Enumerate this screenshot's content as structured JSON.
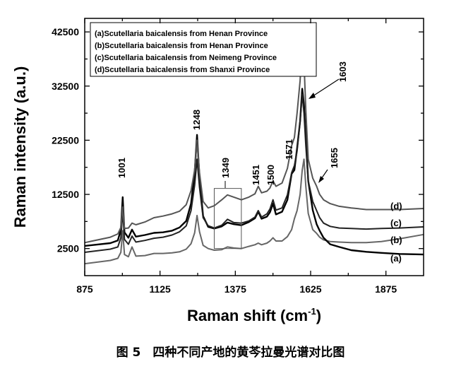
{
  "chart_data": {
    "type": "line",
    "xlabel_main": "Raman shift (cm",
    "xlabel_sup": "-1",
    "xlabel_close": ")",
    "ylabel": "Raman intensity (a.u.)",
    "xlim": [
      875,
      2000
    ],
    "ylim": [
      -2500,
      45000
    ],
    "x_ticks": [
      875,
      1125,
      1375,
      1625,
      1875
    ],
    "y_ticks": [
      2500,
      12500,
      22500,
      32500,
      42500
    ],
    "legend": [
      "(a)Scutellaria baicalensis from Henan Province",
      "(b)Scutellaria baicalensis from Henan Province",
      "(c)Scutellaria baicalensis from Neimeng Province",
      "(d)Scutellaria baicalensis from Shanxi Province"
    ],
    "peak_labels": [
      "1001",
      "1248",
      "1349",
      "1451",
      "1500",
      "1571",
      "1603",
      "1655"
    ],
    "series": [
      {
        "label": "(a)",
        "color": "#666666",
        "x": [
          875,
          960,
          985,
          995,
          1001,
          1007,
          1020,
          1032,
          1045,
          1075,
          1105,
          1135,
          1165,
          1190,
          1212,
          1228,
          1240,
          1248,
          1256,
          1268,
          1285,
          1305,
          1330,
          1349,
          1370,
          1395,
          1420,
          1440,
          1451,
          1462,
          1480,
          1490,
          1500,
          1510,
          1530,
          1548,
          1562,
          1571,
          1580,
          1590,
          1597,
          1603,
          1609,
          1617,
          1632,
          1645,
          1655,
          1668,
          1690,
          1720,
          1760,
          1810,
          1860,
          1920,
          2000
        ],
        "y": [
          -300,
          300,
          700,
          1800,
          5800,
          1400,
          1000,
          2800,
          1100,
          1200,
          1600,
          1600,
          1700,
          1900,
          2400,
          3400,
          5400,
          8600,
          5600,
          3100,
          2500,
          2200,
          2300,
          2800,
          2600,
          2500,
          2900,
          3200,
          3500,
          3200,
          3500,
          3900,
          4500,
          3900,
          3900,
          4700,
          6000,
          8000,
          9500,
          12500,
          17000,
          19000,
          14000,
          9000,
          6000,
          5300,
          4600,
          4100,
          3800,
          3700,
          3600,
          3600,
          3800,
          4300,
          5100
        ]
      },
      {
        "label": "(b)",
        "color": "#000000",
        "x": [
          875,
          960,
          985,
          995,
          1001,
          1007,
          1020,
          1032,
          1045,
          1075,
          1105,
          1135,
          1165,
          1190,
          1212,
          1228,
          1240,
          1248,
          1256,
          1268,
          1285,
          1305,
          1330,
          1349,
          1370,
          1395,
          1420,
          1440,
          1451,
          1462,
          1480,
          1490,
          1500,
          1510,
          1530,
          1548,
          1562,
          1571,
          1580,
          1590,
          1597,
          1603,
          1609,
          1617,
          1632,
          1645,
          1655,
          1668,
          1690,
          1720,
          1760,
          1810,
          1860,
          1920,
          2000
        ],
        "y": [
          3000,
          3500,
          4000,
          6000,
          12000,
          5500,
          4500,
          6000,
          4700,
          5000,
          5400,
          5500,
          5800,
          6400,
          7600,
          10800,
          16500,
          23500,
          15500,
          8500,
          6500,
          6200,
          6600,
          7300,
          7000,
          6800,
          7400,
          8100,
          9300,
          8000,
          8400,
          9200,
          10800,
          8800,
          9300,
          11500,
          16300,
          17000,
          21000,
          26000,
          32000,
          29000,
          23000,
          15000,
          9600,
          7000,
          5800,
          4500,
          3300,
          2800,
          2200,
          1900,
          1700,
          1500,
          1400
        ]
      },
      {
        "label": "(c)",
        "color": "#222222",
        "x": [
          875,
          960,
          985,
          995,
          1001,
          1007,
          1020,
          1032,
          1045,
          1075,
          1105,
          1135,
          1165,
          1190,
          1212,
          1228,
          1240,
          1248,
          1256,
          1268,
          1285,
          1305,
          1330,
          1349,
          1370,
          1395,
          1420,
          1440,
          1451,
          1462,
          1480,
          1490,
          1500,
          1510,
          1530,
          1548,
          1562,
          1571,
          1580,
          1590,
          1597,
          1603,
          1609,
          1617,
          1632,
          1645,
          1655,
          1668,
          1690,
          1720,
          1760,
          1810,
          1860,
          1920,
          2000
        ],
        "y": [
          1800,
          2400,
          2800,
          4500,
          9500,
          4200,
          3300,
          4800,
          3700,
          4000,
          4400,
          4600,
          5000,
          5600,
          6700,
          9500,
          14200,
          19000,
          13800,
          8200,
          6700,
          6300,
          6800,
          7900,
          7300,
          7200,
          7600,
          8300,
          9500,
          8300,
          8900,
          9800,
          11500,
          9600,
          10000,
          12400,
          16500,
          17800,
          20500,
          26000,
          31000,
          27500,
          21500,
          15000,
          11200,
          9500,
          8200,
          7200,
          6600,
          6300,
          6200,
          6100,
          6200,
          6300,
          6500
        ]
      },
      {
        "label": "(d)",
        "color": "#555555",
        "x": [
          875,
          960,
          985,
          995,
          1001,
          1007,
          1020,
          1032,
          1045,
          1075,
          1105,
          1135,
          1165,
          1190,
          1212,
          1228,
          1240,
          1248,
          1256,
          1268,
          1285,
          1305,
          1330,
          1349,
          1370,
          1395,
          1420,
          1440,
          1451,
          1462,
          1480,
          1490,
          1500,
          1510,
          1530,
          1548,
          1562,
          1571,
          1580,
          1590,
          1597,
          1603,
          1609,
          1617,
          1632,
          1645,
          1655,
          1668,
          1690,
          1720,
          1760,
          1810,
          1860,
          1920,
          2000
        ],
        "y": [
          3600,
          4600,
          5200,
          6400,
          10200,
          6200,
          6300,
          7200,
          6900,
          7400,
          8200,
          8500,
          8900,
          9400,
          10600,
          13200,
          17000,
          22500,
          16500,
          11200,
          10000,
          10400,
          11500,
          12400,
          12000,
          11500,
          12000,
          12600,
          14000,
          12800,
          13100,
          13700,
          15000,
          14000,
          14600,
          17300,
          21500,
          23000,
          27500,
          33500,
          41000,
          37000,
          28000,
          19000,
          15500,
          14000,
          12500,
          11500,
          10800,
          10300,
          10000,
          9700,
          9700,
          9700,
          9900
        ]
      }
    ],
    "highlight_box": {
      "x": [
        1305,
        1395
      ],
      "y": [
        2500,
        13600
      ]
    }
  },
  "caption": "图 5　四种不同产地的黄芩拉曼光谱对比图"
}
